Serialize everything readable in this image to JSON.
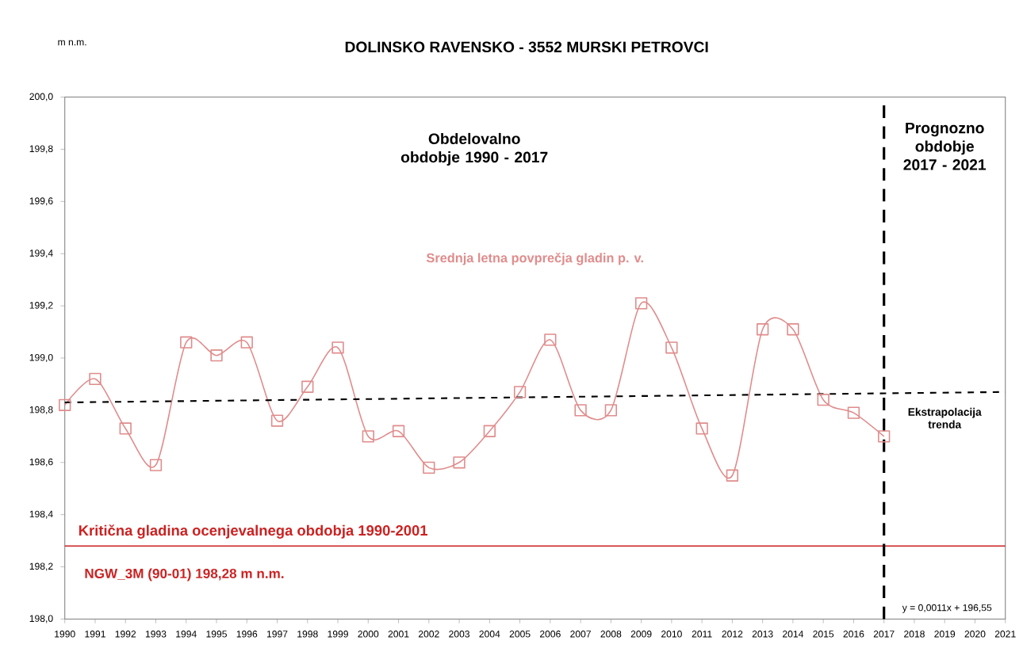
{
  "chart_data": {
    "type": "line",
    "title": "DOLINSKO RAVENSKO - 3552 MURSKI PETROVCI",
    "ylabel": "m n.m.",
    "x": [
      1990,
      1991,
      1992,
      1993,
      1994,
      1995,
      1996,
      1997,
      1998,
      1999,
      2000,
      2001,
      2002,
      2003,
      2004,
      2005,
      2006,
      2007,
      2008,
      2009,
      2010,
      2011,
      2012,
      2013,
      2014,
      2015,
      2016,
      2017
    ],
    "series": [
      {
        "name": "Srednja letna povprečja gladin p. v.",
        "color": "#e08c8c",
        "marker": "square",
        "values": [
          198.82,
          198.92,
          198.73,
          198.59,
          199.06,
          199.01,
          199.06,
          198.76,
          198.89,
          199.04,
          198.7,
          198.72,
          198.58,
          198.6,
          198.72,
          198.87,
          199.07,
          198.8,
          198.8,
          199.21,
          199.04,
          198.73,
          198.55,
          199.11,
          199.11,
          198.84,
          198.79,
          198.7
        ]
      },
      {
        "name": "Ekstrapolacija trenda",
        "type": "line",
        "color": "#000000",
        "line_style": "dashed",
        "marker": "none",
        "x": [
          1990,
          2021
        ],
        "values": [
          198.83,
          198.87
        ]
      }
    ],
    "xlim": [
      1990,
      2021
    ],
    "xticks": [
      1990,
      1991,
      1992,
      1993,
      1994,
      1995,
      1996,
      1997,
      1998,
      1999,
      2000,
      2001,
      2002,
      2003,
      2004,
      2005,
      2006,
      2007,
      2008,
      2009,
      2010,
      2011,
      2012,
      2013,
      2014,
      2015,
      2016,
      2017,
      2018,
      2019,
      2020,
      2021
    ],
    "ylim": [
      198.0,
      200.0
    ],
    "yticks": [
      {
        "value": 198.0,
        "label": "198,0"
      },
      {
        "value": 198.2,
        "label": "198,2"
      },
      {
        "value": 198.4,
        "label": "198,4"
      },
      {
        "value": 198.6,
        "label": "198,6"
      },
      {
        "value": 198.8,
        "label": "198,8"
      },
      {
        "value": 199.0,
        "label": "199,0"
      },
      {
        "value": 199.2,
        "label": "199,2"
      },
      {
        "value": 199.4,
        "label": "199,4"
      },
      {
        "value": 199.6,
        "label": "199,6"
      },
      {
        "value": 199.8,
        "label": "199,8"
      },
      {
        "value": 200.0,
        "label": "200,0"
      }
    ],
    "ref_lines": [
      {
        "axis": "y",
        "value": 198.28,
        "label": "Kritična gladina ocenjevalnega obdobja 1990-2001",
        "color": "#cc2222",
        "line_style": "solid"
      },
      {
        "axis": "x",
        "value": 2017,
        "label": "Prognozno obdobje 2017 - 2021",
        "color": "#000000",
        "line_style": "dashed"
      }
    ],
    "annotations": [
      "Obdelovalno obdobje 1990 - 2017",
      "NGW_3M (90-01)  198,28 m n.m.",
      "y = 0,0011x + 196,55"
    ],
    "grid": false
  }
}
